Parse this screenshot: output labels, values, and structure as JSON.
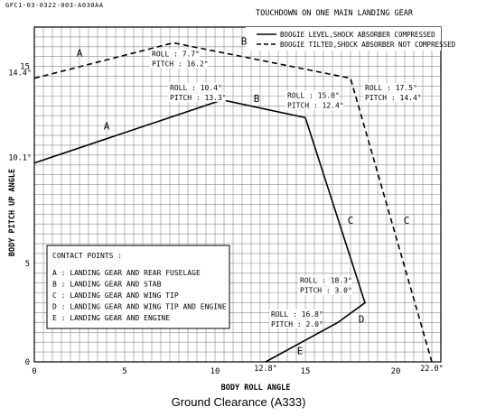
{
  "document_id": "GFC1-03-0322-003-A030AA",
  "footer_title": "Ground Clearance (A333)",
  "chart_data": {
    "type": "line",
    "title": "TOUCHDOWN ON ONE MAIN LANDING GEAR",
    "xlabel": "BODY ROLL ANGLE",
    "ylabel": "BODY PITCH UP ANGLE",
    "xlim": [
      0,
      22.5
    ],
    "ylim": [
      0,
      17
    ],
    "x_ticks": [
      0,
      5,
      10,
      15,
      20
    ],
    "y_ticks": [
      0,
      5,
      15
    ],
    "extra_y_tick_labels": [
      {
        "value": 14.4,
        "label": "14.4°"
      },
      {
        "value": 10.1,
        "label": "10.1°"
      }
    ],
    "extra_x_tick_labels": [
      {
        "value": 12.8,
        "label": "12.8°"
      },
      {
        "value": 22.0,
        "label": "22.0°"
      }
    ],
    "grid": true,
    "legend_position": "top-right",
    "series": [
      {
        "name": "BOOGIE LEVEL,SHOCK ABSORBER COMPRESSED",
        "style": "solid",
        "x": [
          0,
          10.4,
          15.0,
          18.3,
          16.8,
          12.8
        ],
        "y": [
          10.1,
          13.3,
          12.4,
          3.0,
          2.0,
          0
        ]
      },
      {
        "name": "BOOGIE TILTED,SHOCK ABSORBER NOT COMPRESSED",
        "style": "dashed",
        "x": [
          0,
          7.7,
          17.5,
          22.0
        ],
        "y": [
          14.4,
          16.2,
          14.4,
          0
        ]
      }
    ],
    "segment_labels": [
      {
        "text": "A",
        "x": 2.5,
        "y": 15.5
      },
      {
        "text": "B",
        "x": 11.6,
        "y": 16.1
      },
      {
        "text": "A",
        "x": 4.0,
        "y": 11.8
      },
      {
        "text": "B",
        "x": 12.3,
        "y": 13.2
      },
      {
        "text": "C",
        "x": 17.5,
        "y": 7.0
      },
      {
        "text": "C",
        "x": 20.6,
        "y": 7.0
      },
      {
        "text": "D",
        "x": 18.1,
        "y": 2.0
      },
      {
        "text": "E",
        "x": 14.7,
        "y": 0.4
      }
    ],
    "point_annotations": [
      {
        "lines": [
          "ROLL : 7.7°",
          "PITCH : 16.2°"
        ],
        "x": 6.5,
        "y": 15.5
      },
      {
        "lines": [
          "ROLL : 10.4°",
          "PITCH : 13.3°"
        ],
        "x": 7.5,
        "y": 13.8
      },
      {
        "lines": [
          "ROLL : 15.0°",
          "PITCH : 12.4°"
        ],
        "x": 14.0,
        "y": 13.4
      },
      {
        "lines": [
          "ROLL : 17.5°",
          "PITCH : 14.4°"
        ],
        "x": 18.3,
        "y": 13.8
      },
      {
        "lines": [
          "ROLL : 18.3°",
          "PITCH : 3.0°"
        ],
        "x": 14.7,
        "y": 4.0
      },
      {
        "lines": [
          "ROLL : 16.8°",
          "PITCH : 2.0°"
        ],
        "x": 13.1,
        "y": 2.3
      }
    ],
    "contact_points": {
      "title": "CONTACT POINTS :",
      "items": [
        "A : LANDING GEAR AND REAR FUSELAGE",
        "B : LANDING GEAR AND STAB",
        "C : LANDING GEAR AND WING TIP",
        "D : LANDING GEAR AND WING TIP AND ENGINE",
        "E : LANDING GEAR AND ENGINE"
      ]
    }
  }
}
